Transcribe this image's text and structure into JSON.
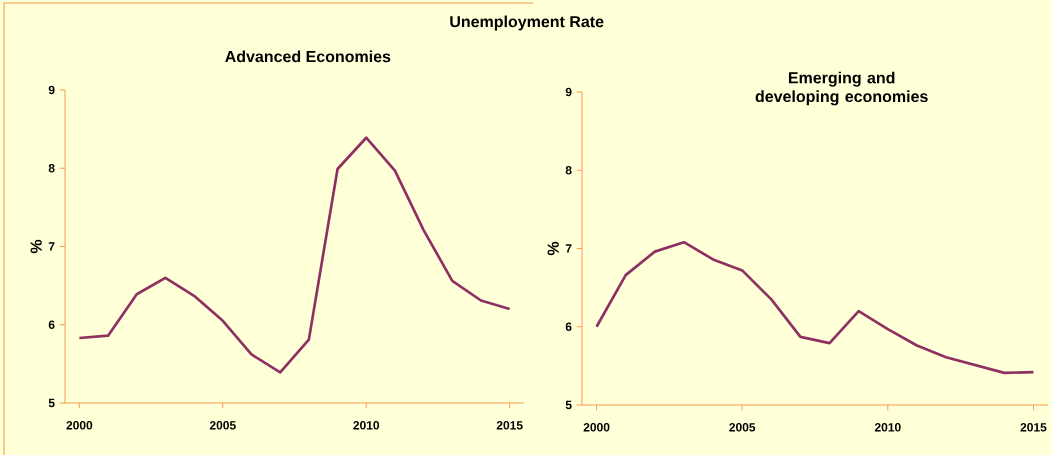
{
  "chart_data": [
    {
      "type": "line",
      "title": "Unemployment Rate",
      "subtitle": "Advanced Economies",
      "ylabel": "%",
      "x": [
        2000,
        2001,
        2002,
        2003,
        2004,
        2005,
        2006,
        2007,
        2008,
        2009,
        2010,
        2011,
        2012,
        2013,
        2014,
        2015
      ],
      "series": [
        {
          "color": "#8e3062",
          "values": [
            5.83,
            5.86,
            6.39,
            6.6,
            6.37,
            6.05,
            5.62,
            5.39,
            5.81,
            7.99,
            8.39,
            7.97,
            7.21,
            6.56,
            6.31,
            6.2
          ]
        }
      ],
      "xlim": [
        1999.5,
        2015.5
      ],
      "xticks": [
        2000,
        2005,
        2010,
        2015
      ],
      "ylim": [
        5,
        9
      ],
      "yticks": [
        5,
        6,
        7,
        8,
        9
      ]
    },
    {
      "type": "line",
      "title": "Emerging and developing economies",
      "ylabel": "%",
      "x": [
        2000,
        2001,
        2002,
        2003,
        2004,
        2005,
        2006,
        2007,
        2008,
        2009,
        2010,
        2011,
        2012,
        2013,
        2014,
        2015
      ],
      "series": [
        {
          "color": "#8e3062",
          "values": [
            6.0,
            6.66,
            6.96,
            7.08,
            6.86,
            6.72,
            6.35,
            5.87,
            5.79,
            6.2,
            5.97,
            5.76,
            5.61,
            5.51,
            5.41,
            5.42
          ]
        }
      ],
      "xlim": [
        1999.5,
        2015.5
      ],
      "xticks": [
        2000,
        2005,
        2010,
        2015
      ],
      "ylim": [
        5,
        9
      ],
      "yticks": [
        5,
        6,
        7,
        8,
        9
      ]
    }
  ]
}
